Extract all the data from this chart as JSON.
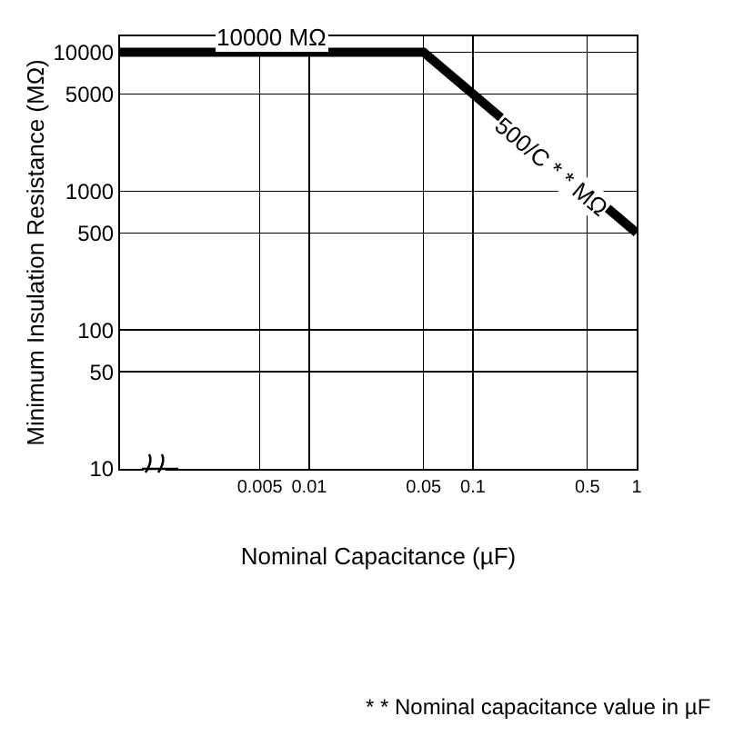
{
  "chart_data": {
    "type": "line",
    "xlabel": "Nominal Capacitance (µF)",
    "ylabel": "Minimum Insulation Resistance (MΩ)",
    "log": "xy",
    "x": [
      0.0007,
      0.05,
      1
    ],
    "series": [
      {
        "color": "#000000",
        "values": [
          10000,
          10000,
          500
        ]
      }
    ],
    "xlim": [
      0.0007,
      1
    ],
    "xticks": [
      0.005,
      0.01,
      0.05,
      0.1,
      0.5,
      1
    ],
    "ylim": [
      10,
      13000
    ],
    "yticks": [
      10,
      50,
      100,
      500,
      1000,
      5000,
      10000
    ],
    "grid": true,
    "legend": false,
    "marker": "none",
    "line_style": "solid",
    "annotations": [
      {
        "text": "10000 MΩ",
        "x": 0.006,
        "y": 10000
      },
      {
        "text": "500/C * * MΩ",
        "x": 0.3,
        "y": 1500
      },
      "* * Nominal capacitance value in µF"
    ]
  }
}
